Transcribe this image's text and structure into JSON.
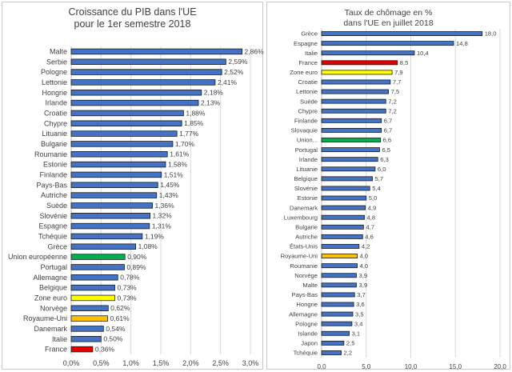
{
  "chart_data": [
    {
      "type": "bar",
      "orientation": "horizontal",
      "title": [
        "Croissance du PIB dans l'UE",
        "pour le 1er semestre 2018"
      ],
      "categories": [
        "Malte",
        "Serbie",
        "Pologne",
        "Lettonie",
        "Hongrie",
        "Irlande",
        "Croatie",
        "Chypre",
        "Lituanie",
        "Bulgarie",
        "Roumanie",
        "Estonie",
        "Finlande",
        "Pays-Bas",
        "Autriche",
        "Suède",
        "Slovénie",
        "Espagne",
        "Tchéquie",
        "Grèce",
        "Union européenne",
        "Portugal",
        "Allemagne",
        "Belgique",
        "Zone euro",
        "Norvège",
        "Royaume-Uni",
        "Danemark",
        "Italie",
        "France"
      ],
      "values": [
        2.86,
        2.59,
        2.52,
        2.41,
        2.18,
        2.13,
        1.88,
        1.85,
        1.77,
        1.7,
        1.61,
        1.58,
        1.51,
        1.45,
        1.43,
        1.36,
        1.32,
        1.31,
        1.19,
        1.08,
        0.9,
        0.89,
        0.78,
        0.73,
        0.73,
        0.62,
        0.61,
        0.54,
        0.5,
        0.36
      ],
      "data_labels": [
        "2,86%",
        "2,59%",
        "2,52%",
        "2,41%",
        "2,18%",
        "2,13%",
        "1,88%",
        "1,85%",
        "1,77%",
        "1,70%",
        "1,61%",
        "1,58%",
        "1,51%",
        "1,45%",
        "1,43%",
        "1,36%",
        "1,32%",
        "1,31%",
        "1,19%",
        "1,08%",
        "0,90%",
        "0,89%",
        "0,78%",
        "0,73%",
        "0,73%",
        "0,62%",
        "0,61%",
        "0,54%",
        "0,50%",
        "0,36%"
      ],
      "colors": [
        "#4472c4",
        "#4472c4",
        "#4472c4",
        "#4472c4",
        "#4472c4",
        "#4472c4",
        "#4472c4",
        "#4472c4",
        "#4472c4",
        "#4472c4",
        "#4472c4",
        "#4472c4",
        "#4472c4",
        "#4472c4",
        "#4472c4",
        "#4472c4",
        "#4472c4",
        "#4472c4",
        "#4472c4",
        "#4472c4",
        "#00b050",
        "#4472c4",
        "#4472c4",
        "#4472c4",
        "#ffff00",
        "#4472c4",
        "#ffc000",
        "#4472c4",
        "#4472c4",
        "#e00000"
      ],
      "xlim": [
        0,
        3.0
      ],
      "xticks": [
        0,
        0.5,
        1.0,
        1.5,
        2.0,
        2.5,
        3.0
      ],
      "xtick_labels": [
        "0,0%",
        "0,5%",
        "1,0%",
        "1,5%",
        "2,0%",
        "2,5%",
        "3,0%"
      ],
      "grid": true,
      "bar_outline": "#1a1a1a"
    },
    {
      "type": "bar",
      "orientation": "horizontal",
      "title": [
        "Taux de chômage en %",
        "dans l'UE en juillet 2018"
      ],
      "categories": [
        "Grèce",
        "Espagne",
        "Italie",
        "France",
        "Zone euro",
        "Croatie",
        "Lettonie",
        "Suède",
        "Chypre",
        "Finlande",
        "Slovaquie",
        "Union...",
        "Portugal",
        "Irlande",
        "Lituanie",
        "Belgique",
        "Slovénie",
        "Estonie",
        "Danemark",
        "Luxembourg",
        "Bulgarie",
        "Autriche",
        "États-Unis",
        "Royaume-Uni",
        "Roumanie",
        "Norvège",
        "Malte",
        "Pays-Bas",
        "Hongrie",
        "Allemagne",
        "Pologne",
        "Islande",
        "Japon",
        "Tchéquie"
      ],
      "values": [
        18.0,
        14.8,
        10.4,
        8.5,
        7.9,
        7.7,
        7.5,
        7.2,
        7.2,
        6.7,
        6.7,
        6.6,
        6.5,
        6.3,
        6.0,
        5.7,
        5.4,
        5.0,
        4.9,
        4.8,
        4.7,
        4.6,
        4.2,
        4.0,
        4.0,
        3.9,
        3.9,
        3.7,
        3.6,
        3.5,
        3.4,
        3.1,
        2.5,
        2.2
      ],
      "data_labels": [
        "18,0",
        "14,8",
        "10,4",
        "8,5",
        "7,9",
        "7,7",
        "7,5",
        "7,2",
        "7,2",
        "6,7",
        "6,7",
        "6,6",
        "6,5",
        "6,3",
        "6,0",
        "5,7",
        "5,4",
        "5,0",
        "4,9",
        "4,8",
        "4,7",
        "4,6",
        "4,2",
        "4,0",
        "4,0",
        "3,9",
        "3,9",
        "3,7",
        "3,6",
        "3,5",
        "3,4",
        "3,1",
        "2,5",
        "2,2"
      ],
      "colors": [
        "#4472c4",
        "#4472c4",
        "#4472c4",
        "#e00000",
        "#ffff00",
        "#4472c4",
        "#4472c4",
        "#4472c4",
        "#4472c4",
        "#4472c4",
        "#4472c4",
        "#00b050",
        "#4472c4",
        "#4472c4",
        "#4472c4",
        "#4472c4",
        "#4472c4",
        "#4472c4",
        "#4472c4",
        "#4472c4",
        "#4472c4",
        "#4472c4",
        "#4472c4",
        "#ffc000",
        "#4472c4",
        "#4472c4",
        "#4472c4",
        "#4472c4",
        "#4472c4",
        "#4472c4",
        "#4472c4",
        "#4472c4",
        "#4472c4",
        "#4472c4"
      ],
      "xlim": [
        0,
        20.0
      ],
      "xticks": [
        0,
        5,
        10,
        15,
        20
      ],
      "xtick_labels": [
        "0,0",
        "5,0",
        "10,0",
        "15,0",
        "20,0"
      ],
      "grid": true,
      "bar_outline": "#1a1a1a"
    }
  ]
}
